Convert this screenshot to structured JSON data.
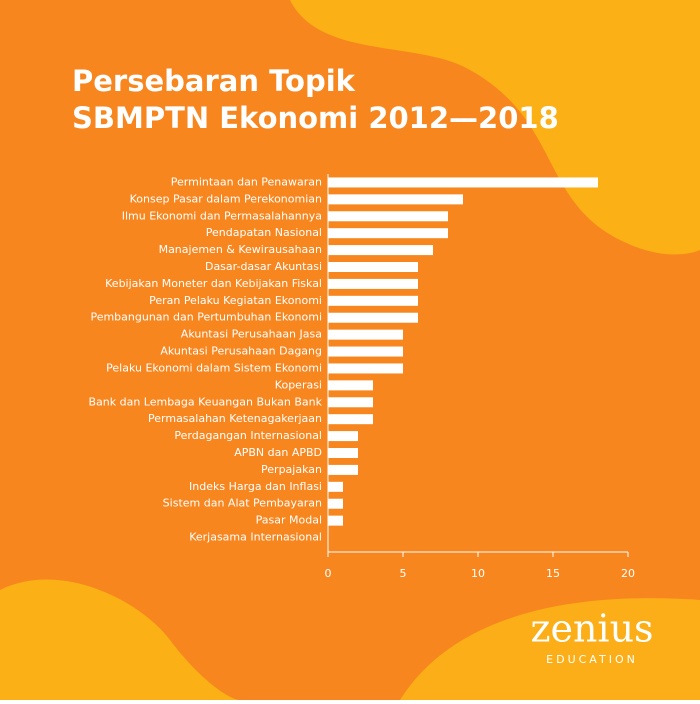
{
  "chart_data": {
    "type": "hbar",
    "title": "Persebaran Topik",
    "subtitle": "SBMPTN Ekonomi 2012—2018",
    "categories": [
      "Permintaan dan Penawaran",
      "Konsep Pasar dalam Perekonomian",
      "Ilmu Ekonomi dan Permasalahannya",
      "Pendapatan Nasional",
      "Manajemen & Kewirausahaan",
      "Dasar-dasar Akuntasi",
      "Kebijakan Moneter dan Kebijakan Fiskal",
      "Peran Pelaku Kegiatan Ekonomi",
      "Pembangunan dan Pertumbuhan Ekonomi",
      "Akuntasi Perusahaan Jasa",
      "Akuntasi Perusahaan Dagang",
      "Pelaku Ekonomi dalam Sistem Ekonomi",
      "Koperasi",
      "Bank dan Lembaga Keuangan Bukan Bank",
      "Permasalahan Ketenagakerjaan",
      "Perdagangan Internasional",
      "APBN dan APBD",
      "Perpajakan",
      "Indeks Harga dan Inflasi",
      "Sistem dan Alat Pembayaran",
      "Pasar Modal",
      "Kerjasama Internasional"
    ],
    "values": [
      18,
      9,
      8,
      8,
      7,
      6,
      6,
      6,
      6,
      5,
      5,
      5,
      3,
      3,
      3,
      2,
      2,
      2,
      1,
      1,
      1,
      0
    ],
    "color": "#ffffff",
    "xlim": [
      0,
      20
    ],
    "xticks": [
      0,
      5,
      10,
      15,
      20
    ],
    "grid": false
  },
  "brand": {
    "name": "zenius",
    "tagline": "EDUCATION"
  }
}
